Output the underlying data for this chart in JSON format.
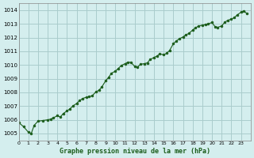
{
  "title": "Graphe pression niveau de la mer (hPa)",
  "bg_color": "#d4eeee",
  "line_color": "#1a5c1a",
  "marker_color": "#1a5c1a",
  "grid_color": "#aacccc",
  "xlim": [
    0,
    24
  ],
  "ylim": [
    1004.5,
    1014.5
  ],
  "yticks": [
    1005,
    1006,
    1007,
    1008,
    1009,
    1010,
    1011,
    1012,
    1013,
    1014
  ],
  "xticks": [
    0,
    1,
    2,
    3,
    4,
    5,
    6,
    7,
    8,
    9,
    10,
    11,
    12,
    13,
    14,
    15,
    16,
    17,
    18,
    19,
    20,
    21,
    22,
    23
  ],
  "x": [
    0,
    0.5,
    1.0,
    1.3,
    1.6,
    2.0,
    2.5,
    3.0,
    3.3,
    3.6,
    4.0,
    4.3,
    4.6,
    5.0,
    5.3,
    5.6,
    6.0,
    6.3,
    6.6,
    7.0,
    7.3,
    7.6,
    8.0,
    8.3,
    8.6,
    9.0,
    9.3,
    9.6,
    10.0,
    10.3,
    10.6,
    11.0,
    11.3,
    11.6,
    12.0,
    12.3,
    12.6,
    13.0,
    13.3,
    13.6,
    14.0,
    14.3,
    14.6,
    15.0,
    15.3,
    15.6,
    16.0,
    16.3,
    16.6,
    17.0,
    17.3,
    17.6,
    18.0,
    18.3,
    18.6,
    19.0,
    19.3,
    19.6,
    20.0,
    20.3,
    20.6,
    21.0,
    21.3,
    21.6,
    22.0,
    22.3,
    22.6,
    23.0,
    23.3,
    23.6
  ],
  "y": [
    1005.8,
    1005.5,
    1005.1,
    1005.0,
    1005.6,
    1005.9,
    1005.95,
    1006.0,
    1006.05,
    1006.15,
    1006.3,
    1006.2,
    1006.45,
    1006.65,
    1006.8,
    1007.0,
    1007.2,
    1007.4,
    1007.55,
    1007.65,
    1007.7,
    1007.75,
    1008.05,
    1008.15,
    1008.4,
    1008.85,
    1009.1,
    1009.4,
    1009.55,
    1009.75,
    1009.95,
    1010.1,
    1010.2,
    1010.2,
    1009.9,
    1009.85,
    1010.05,
    1010.1,
    1010.15,
    1010.4,
    1010.55,
    1010.65,
    1010.8,
    1010.75,
    1010.85,
    1011.05,
    1011.55,
    1011.75,
    1011.9,
    1012.05,
    1012.2,
    1012.3,
    1012.55,
    1012.7,
    1012.85,
    1012.9,
    1012.95,
    1013.0,
    1013.1,
    1012.8,
    1012.75,
    1012.85,
    1013.1,
    1013.25,
    1013.35,
    1013.45,
    1013.65,
    1013.85,
    1013.95,
    1013.75
  ]
}
